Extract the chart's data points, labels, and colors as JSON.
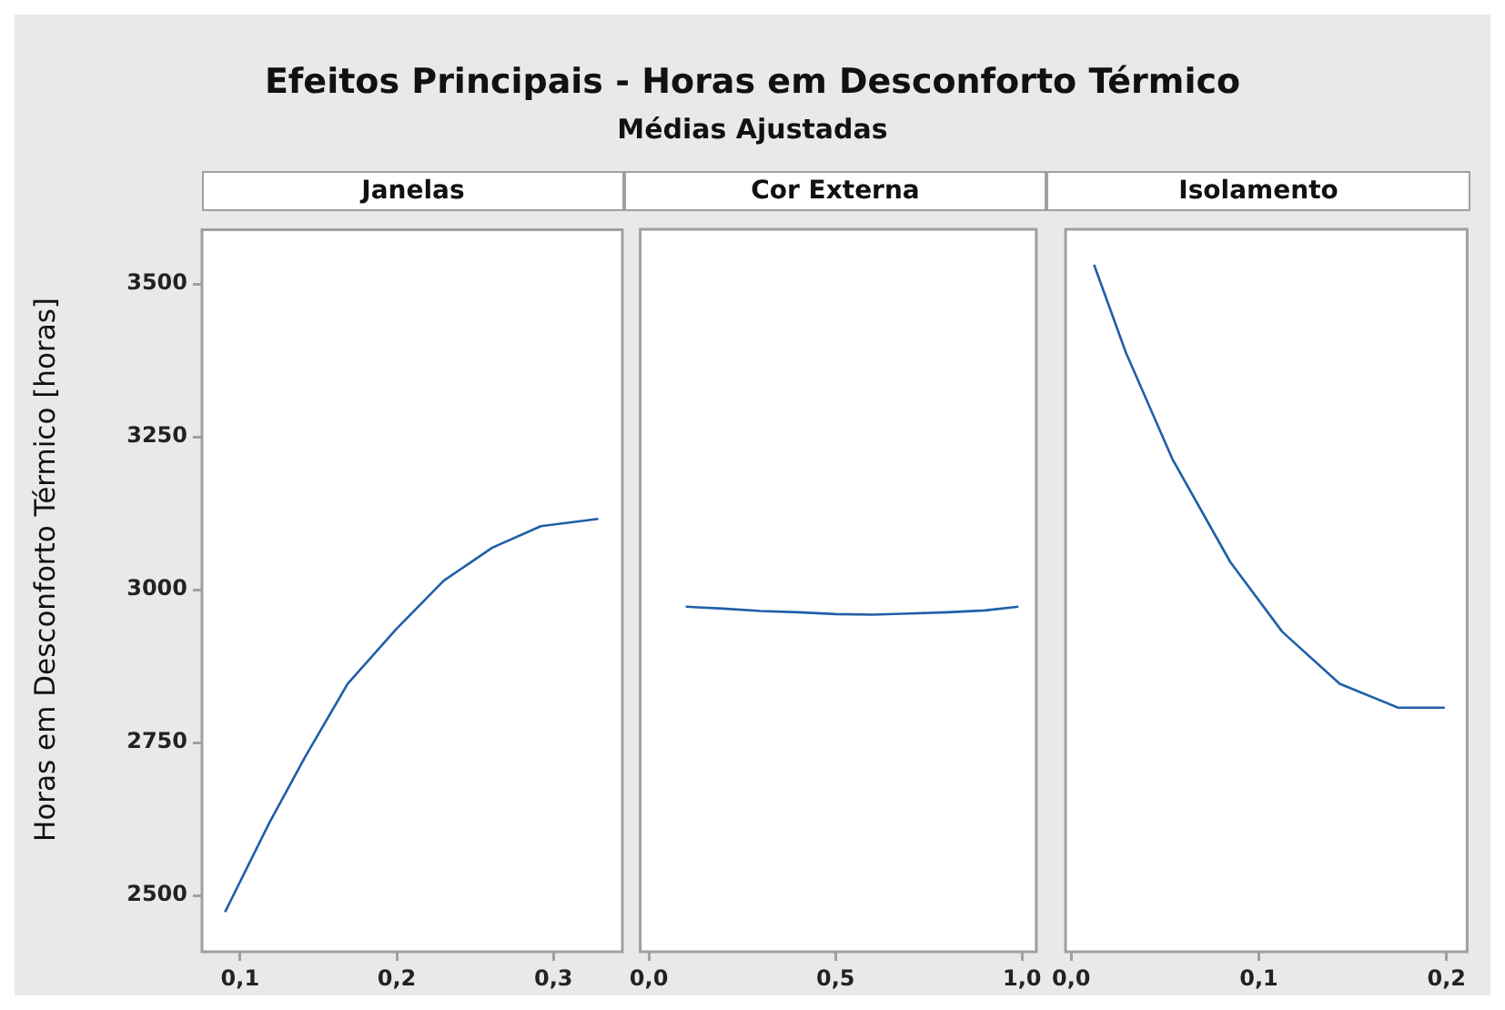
{
  "chart_data": [
    {
      "type": "line",
      "title": "Efeitos Principais - Horas em Desconforto Térmico",
      "ylabel": "Horas em Desconforto Térmico [horas]",
      "xlabel": "Janelas",
      "x": [
        0.0904,
        0.1185,
        0.1416,
        0.1686,
        0.1994,
        0.23,
        0.261,
        0.292,
        0.3286
      ],
      "series": [
        {
          "color": "#1f5fa8",
          "values": [
            2473,
            2618,
            2727,
            2846,
            2935,
            3015,
            3069,
            3104,
            3116
          ]
        }
      ],
      "xlim": [
        0.0757,
        0.344
      ],
      "xticks": [
        {
          "value": 0.1,
          "label": "0,1"
        },
        {
          "value": 0.2,
          "label": "0,2"
        },
        {
          "value": 0.3,
          "label": "0,3"
        }
      ],
      "ylim": [
        2408,
        3589
      ],
      "yticks": [
        2500,
        2750,
        3000,
        3250,
        3500
      ]
    },
    {
      "type": "line",
      "subtitle": "Médias Ajustadas",
      "xlabel": "Cor Externa",
      "x": [
        0.099,
        0.2,
        0.3,
        0.4,
        0.5,
        0.6,
        0.7,
        0.8,
        0.9,
        0.99
      ],
      "series": [
        {
          "color": "#1f5fa8",
          "values": [
            2972,
            2969,
            2965,
            2963,
            2960,
            2959,
            2961,
            2963,
            2966,
            2972
          ]
        }
      ],
      "xlim": [
        -0.023,
        1.038
      ],
      "xticks": [
        {
          "value": 0,
          "label": "0,0"
        },
        {
          "value": 0.5,
          "label": "0,5"
        },
        {
          "value": 1,
          "label": "1,0"
        }
      ],
      "ylim": [
        2408,
        3589
      ],
      "tick_labels": "x"
    },
    {
      "type": "line",
      "xlabel": "Isolamento",
      "x": [
        0.0122,
        0.0292,
        0.054,
        0.0848,
        0.1125,
        0.1431,
        0.1742,
        0.1991
      ],
      "series": [
        {
          "color": "#1f5fa8",
          "values": [
            3531,
            3387,
            3213,
            3045,
            2931,
            2846,
            2807,
            2807
          ]
        }
      ],
      "xlim": [
        -0.003,
        0.211
      ],
      "xticks": [
        {
          "value": 0,
          "label": "0,0"
        },
        {
          "value": 0.1,
          "label": "0,1"
        },
        {
          "value": 0.2,
          "label": "0,2"
        }
      ],
      "ylim": [
        2408,
        3589
      ],
      "tick_labels": "x"
    }
  ]
}
